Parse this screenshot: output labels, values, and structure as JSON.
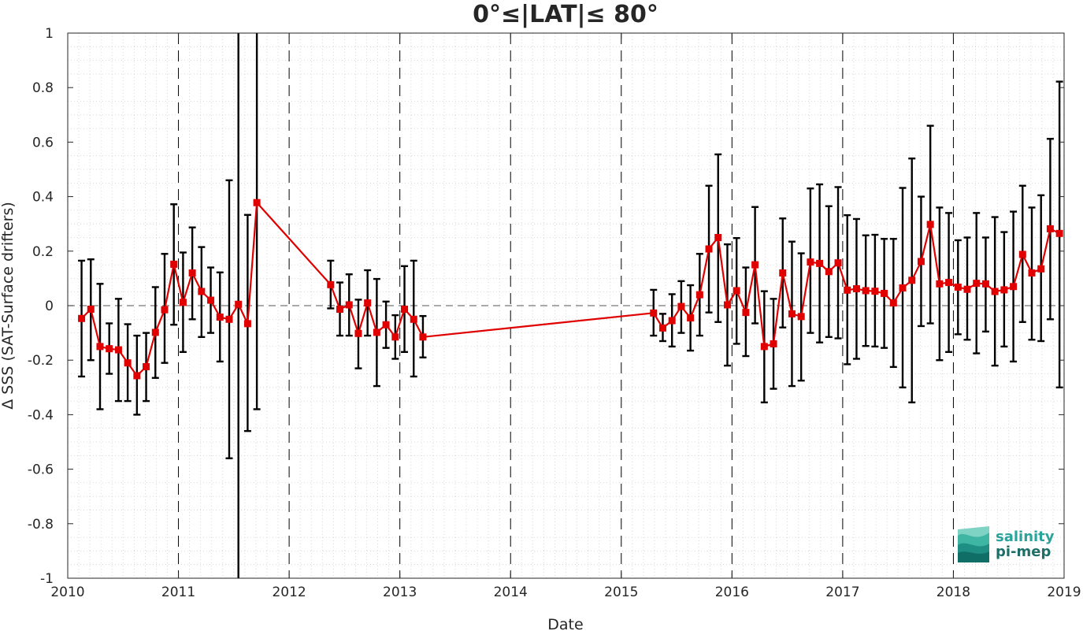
{
  "chart_data": {
    "type": "line",
    "title": "0°≤|LAT|≤ 80°",
    "xlabel": "Date",
    "ylabel": "Δ SSS (SAT-Surface drifters)",
    "xlim": [
      2010,
      2019
    ],
    "ylim": [
      -1,
      1
    ],
    "x_ticks": [
      "2010",
      "2011",
      "2012",
      "2013",
      "2014",
      "2015",
      "2016",
      "2017",
      "2018",
      "2019"
    ],
    "y_ticks": [
      "-1",
      "-0.8",
      "-0.6",
      "-0.4",
      "-0.2",
      "0",
      "0.2",
      "0.4",
      "0.6",
      "0.8",
      "1"
    ],
    "year_divider_lines": [
      "2011",
      "2012",
      "2013",
      "2014",
      "2015",
      "2016",
      "2017",
      "2018"
    ],
    "zero_reference_line": 0,
    "minor_grid": true,
    "series": [
      {
        "color": "#e00000",
        "marker": "square",
        "error_bar_color": "#000000",
        "points": [
          {
            "x": "2010-02",
            "y": -0.047,
            "lo": -0.26,
            "hi": 0.165
          },
          {
            "x": "2010-03",
            "y": -0.013,
            "lo": -0.2,
            "hi": 0.17
          },
          {
            "x": "2010-04",
            "y": -0.15,
            "lo": -0.38,
            "hi": 0.08
          },
          {
            "x": "2010-05",
            "y": -0.158,
            "lo": -0.25,
            "hi": -0.065
          },
          {
            "x": "2010-06",
            "y": -0.162,
            "lo": -0.35,
            "hi": 0.025
          },
          {
            "x": "2010-07",
            "y": -0.21,
            "lo": -0.35,
            "hi": -0.068
          },
          {
            "x": "2010-08",
            "y": -0.257,
            "lo": -0.4,
            "hi": -0.11
          },
          {
            "x": "2010-09",
            "y": -0.224,
            "lo": -0.35,
            "hi": -0.1
          },
          {
            "x": "2010-10",
            "y": -0.098,
            "lo": -0.265,
            "hi": 0.068
          },
          {
            "x": "2010-11",
            "y": -0.015,
            "lo": -0.21,
            "hi": 0.19
          },
          {
            "x": "2010-12",
            "y": 0.152,
            "lo": -0.07,
            "hi": 0.372
          },
          {
            "x": "2011-01",
            "y": 0.012,
            "lo": -0.17,
            "hi": 0.195
          },
          {
            "x": "2011-02",
            "y": 0.12,
            "lo": -0.05,
            "hi": 0.287
          },
          {
            "x": "2011-03",
            "y": 0.052,
            "lo": -0.115,
            "hi": 0.215
          },
          {
            "x": "2011-04",
            "y": 0.02,
            "lo": -0.1,
            "hi": 0.14
          },
          {
            "x": "2011-05",
            "y": -0.042,
            "lo": -0.205,
            "hi": 0.122
          },
          {
            "x": "2011-06",
            "y": -0.05,
            "lo": -0.56,
            "hi": 0.46
          },
          {
            "x": "2011-07",
            "y": 0.005,
            "lo": -1.0,
            "hi": 1.0
          },
          {
            "x": "2011-08",
            "y": -0.066,
            "lo": -0.46,
            "hi": 0.333
          },
          {
            "x": "2011-09",
            "y": 0.378,
            "lo": -0.38,
            "hi": 1.0
          },
          {
            "x": "2012-05",
            "y": 0.077,
            "lo": -0.01,
            "hi": 0.165
          },
          {
            "x": "2012-06",
            "y": -0.013,
            "lo": -0.11,
            "hi": 0.085
          },
          {
            "x": "2012-07",
            "y": 0.003,
            "lo": -0.11,
            "hi": 0.115
          },
          {
            "x": "2012-08",
            "y": -0.102,
            "lo": -0.23,
            "hi": 0.022
          },
          {
            "x": "2012-09",
            "y": 0.01,
            "lo": -0.11,
            "hi": 0.13
          },
          {
            "x": "2012-10",
            "y": -0.098,
            "lo": -0.295,
            "hi": 0.098
          },
          {
            "x": "2012-11",
            "y": -0.07,
            "lo": -0.155,
            "hi": 0.015
          },
          {
            "x": "2012-12",
            "y": -0.115,
            "lo": -0.195,
            "hi": -0.035
          },
          {
            "x": "2013-01",
            "y": -0.013,
            "lo": -0.17,
            "hi": 0.145
          },
          {
            "x": "2013-02",
            "y": -0.05,
            "lo": -0.26,
            "hi": 0.165
          },
          {
            "x": "2013-03",
            "y": -0.115,
            "lo": -0.19,
            "hi": -0.038
          },
          {
            "x": "2015-04",
            "y": -0.027,
            "lo": -0.11,
            "hi": 0.058
          },
          {
            "x": "2015-05",
            "y": -0.082,
            "lo": -0.13,
            "hi": -0.03
          },
          {
            "x": "2015-06",
            "y": -0.055,
            "lo": -0.15,
            "hi": 0.042
          },
          {
            "x": "2015-07",
            "y": -0.003,
            "lo": -0.1,
            "hi": 0.09
          },
          {
            "x": "2015-08",
            "y": -0.045,
            "lo": -0.165,
            "hi": 0.075
          },
          {
            "x": "2015-09",
            "y": 0.04,
            "lo": -0.11,
            "hi": 0.19
          },
          {
            "x": "2015-10",
            "y": 0.208,
            "lo": -0.025,
            "hi": 0.44
          },
          {
            "x": "2015-11",
            "y": 0.25,
            "lo": -0.06,
            "hi": 0.555
          },
          {
            "x": "2015-12",
            "y": 0.003,
            "lo": -0.22,
            "hi": 0.225
          },
          {
            "x": "2016-01",
            "y": 0.055,
            "lo": -0.14,
            "hi": 0.248
          },
          {
            "x": "2016-02",
            "y": -0.025,
            "lo": -0.185,
            "hi": 0.14
          },
          {
            "x": "2016-03",
            "y": 0.15,
            "lo": -0.065,
            "hi": 0.362
          },
          {
            "x": "2016-04",
            "y": -0.15,
            "lo": -0.355,
            "hi": 0.053
          },
          {
            "x": "2016-05",
            "y": -0.14,
            "lo": -0.305,
            "hi": 0.025
          },
          {
            "x": "2016-06",
            "y": 0.12,
            "lo": -0.08,
            "hi": 0.32
          },
          {
            "x": "2016-07",
            "y": -0.03,
            "lo": -0.295,
            "hi": 0.235
          },
          {
            "x": "2016-08",
            "y": -0.04,
            "lo": -0.275,
            "hi": 0.192
          },
          {
            "x": "2016-09",
            "y": 0.16,
            "lo": -0.1,
            "hi": 0.43
          },
          {
            "x": "2016-10",
            "y": 0.155,
            "lo": -0.135,
            "hi": 0.445
          },
          {
            "x": "2016-11",
            "y": 0.125,
            "lo": -0.115,
            "hi": 0.365
          },
          {
            "x": "2016-12",
            "y": 0.157,
            "lo": -0.12,
            "hi": 0.435
          },
          {
            "x": "2017-01",
            "y": 0.057,
            "lo": -0.215,
            "hi": 0.332
          },
          {
            "x": "2017-02",
            "y": 0.062,
            "lo": -0.195,
            "hi": 0.318
          },
          {
            "x": "2017-03",
            "y": 0.055,
            "lo": -0.148,
            "hi": 0.258
          },
          {
            "x": "2017-04",
            "y": 0.053,
            "lo": -0.15,
            "hi": 0.26
          },
          {
            "x": "2017-05",
            "y": 0.045,
            "lo": -0.155,
            "hi": 0.245
          },
          {
            "x": "2017-06",
            "y": 0.01,
            "lo": -0.225,
            "hi": 0.245
          },
          {
            "x": "2017-07",
            "y": 0.065,
            "lo": -0.3,
            "hi": 0.432
          },
          {
            "x": "2017-08",
            "y": 0.093,
            "lo": -0.355,
            "hi": 0.54
          },
          {
            "x": "2017-09",
            "y": 0.162,
            "lo": -0.075,
            "hi": 0.4
          },
          {
            "x": "2017-10",
            "y": 0.298,
            "lo": -0.065,
            "hi": 0.66
          },
          {
            "x": "2017-11",
            "y": 0.08,
            "lo": -0.2,
            "hi": 0.36
          },
          {
            "x": "2017-12",
            "y": 0.085,
            "lo": -0.17,
            "hi": 0.34
          },
          {
            "x": "2018-01",
            "y": 0.068,
            "lo": -0.105,
            "hi": 0.24
          },
          {
            "x": "2018-02",
            "y": 0.06,
            "lo": -0.125,
            "hi": 0.25
          },
          {
            "x": "2018-03",
            "y": 0.082,
            "lo": -0.175,
            "hi": 0.34
          },
          {
            "x": "2018-04",
            "y": 0.08,
            "lo": -0.095,
            "hi": 0.25
          },
          {
            "x": "2018-05",
            "y": 0.052,
            "lo": -0.22,
            "hi": 0.325
          },
          {
            "x": "2018-06",
            "y": 0.058,
            "lo": -0.15,
            "hi": 0.27
          },
          {
            "x": "2018-07",
            "y": 0.07,
            "lo": -0.205,
            "hi": 0.345
          },
          {
            "x": "2018-08",
            "y": 0.188,
            "lo": -0.06,
            "hi": 0.44
          },
          {
            "x": "2018-09",
            "y": 0.12,
            "lo": -0.125,
            "hi": 0.36
          },
          {
            "x": "2018-10",
            "y": 0.135,
            "lo": -0.13,
            "hi": 0.405
          },
          {
            "x": "2018-11",
            "y": 0.282,
            "lo": -0.05,
            "hi": 0.612
          },
          {
            "x": "2018-12",
            "y": 0.265,
            "lo": -0.3,
            "hi": 0.822
          }
        ],
        "gaps_after": [
          "2011-09",
          "2013-03"
        ]
      }
    ]
  },
  "logo": {
    "line1": "salinity",
    "line2": "pi-mep",
    "color": "#2aa39a"
  }
}
